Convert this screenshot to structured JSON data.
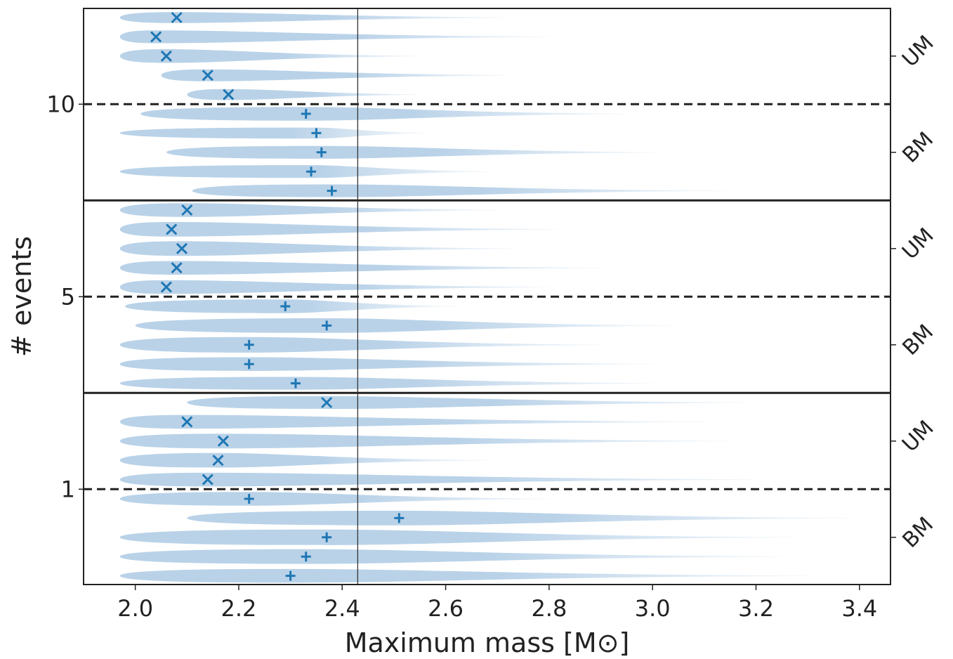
{
  "chart_data": {
    "type": "violin",
    "xlabel": "Maximum mass [M⊙]",
    "ylabel": "# events",
    "xlim": [
      1.9,
      3.46
    ],
    "xticks": [
      2.0,
      2.2,
      2.4,
      2.6,
      2.8,
      3.0,
      3.2,
      3.4
    ],
    "xtick_labels": [
      "2.0",
      "2.2",
      "2.4",
      "2.6",
      "2.8",
      "3.0",
      "3.2",
      "3.4"
    ],
    "reference_line_x": 2.43,
    "violin_color": "#b9d2e8",
    "marker_color": "#1f77b4",
    "line_color": "#222222",
    "panels": [
      {
        "events_label": "10",
        "groups": [
          {
            "label": "UM",
            "marker": "x",
            "violins": [
              {
                "median": 2.08,
                "min": 1.97,
                "max": 2.72,
                "width": 0.6
              },
              {
                "median": 2.04,
                "min": 1.97,
                "max": 2.8,
                "width": 0.7
              },
              {
                "median": 2.06,
                "min": 1.97,
                "max": 2.55,
                "width": 0.75
              },
              {
                "median": 2.14,
                "min": 2.05,
                "max": 2.72,
                "width": 0.65
              },
              {
                "median": 2.18,
                "min": 2.1,
                "max": 2.55,
                "width": 0.6
              }
            ]
          },
          {
            "label": "BM",
            "marker": "+",
            "violins": [
              {
                "median": 2.33,
                "min": 2.01,
                "max": 2.95,
                "width": 0.75
              },
              {
                "median": 2.35,
                "min": 1.97,
                "max": 2.56,
                "width": 0.6
              },
              {
                "median": 2.36,
                "min": 2.06,
                "max": 3.01,
                "width": 0.7
              },
              {
                "median": 2.34,
                "min": 1.97,
                "max": 2.68,
                "width": 0.7
              },
              {
                "median": 2.38,
                "min": 2.11,
                "max": 3.14,
                "width": 0.7
              }
            ]
          }
        ]
      },
      {
        "events_label": "5",
        "groups": [
          {
            "label": "UM",
            "marker": "x",
            "violins": [
              {
                "median": 2.1,
                "min": 1.97,
                "max": 2.7,
                "width": 0.75
              },
              {
                "median": 2.07,
                "min": 1.97,
                "max": 2.82,
                "width": 0.8
              },
              {
                "median": 2.09,
                "min": 1.97,
                "max": 2.73,
                "width": 0.8
              },
              {
                "median": 2.08,
                "min": 1.97,
                "max": 2.9,
                "width": 0.75
              },
              {
                "median": 2.06,
                "min": 1.97,
                "max": 2.8,
                "width": 0.75
              }
            ]
          },
          {
            "label": "BM",
            "marker": "+",
            "violins": [
              {
                "median": 2.29,
                "min": 1.98,
                "max": 2.62,
                "width": 0.75
              },
              {
                "median": 2.37,
                "min": 2.0,
                "max": 3.04,
                "width": 0.8
              },
              {
                "median": 2.22,
                "min": 1.97,
                "max": 2.9,
                "width": 0.85
              },
              {
                "median": 2.22,
                "min": 1.97,
                "max": 3.0,
                "width": 0.75
              },
              {
                "median": 2.31,
                "min": 1.97,
                "max": 3.0,
                "width": 0.7
              }
            ]
          }
        ]
      },
      {
        "events_label": "1",
        "groups": [
          {
            "label": "UM",
            "marker": "x",
            "violins": [
              {
                "median": 2.37,
                "min": 2.1,
                "max": 3.18,
                "width": 0.7
              },
              {
                "median": 2.1,
                "min": 1.97,
                "max": 3.1,
                "width": 0.75
              },
              {
                "median": 2.17,
                "min": 1.97,
                "max": 3.15,
                "width": 0.8
              },
              {
                "median": 2.16,
                "min": 1.97,
                "max": 2.68,
                "width": 0.8
              },
              {
                "median": 2.14,
                "min": 1.97,
                "max": 3.2,
                "width": 0.75
              }
            ]
          },
          {
            "label": "BM",
            "marker": "+",
            "violins": [
              {
                "median": 2.22,
                "min": 1.97,
                "max": 2.8,
                "width": 0.75
              },
              {
                "median": 2.51,
                "min": 2.1,
                "max": 3.38,
                "width": 0.8
              },
              {
                "median": 2.37,
                "min": 1.97,
                "max": 3.27,
                "width": 0.85
              },
              {
                "median": 2.33,
                "min": 1.97,
                "max": 3.25,
                "width": 0.8
              },
              {
                "median": 2.3,
                "min": 1.97,
                "max": 3.3,
                "width": 0.75
              }
            ]
          }
        ]
      }
    ]
  }
}
